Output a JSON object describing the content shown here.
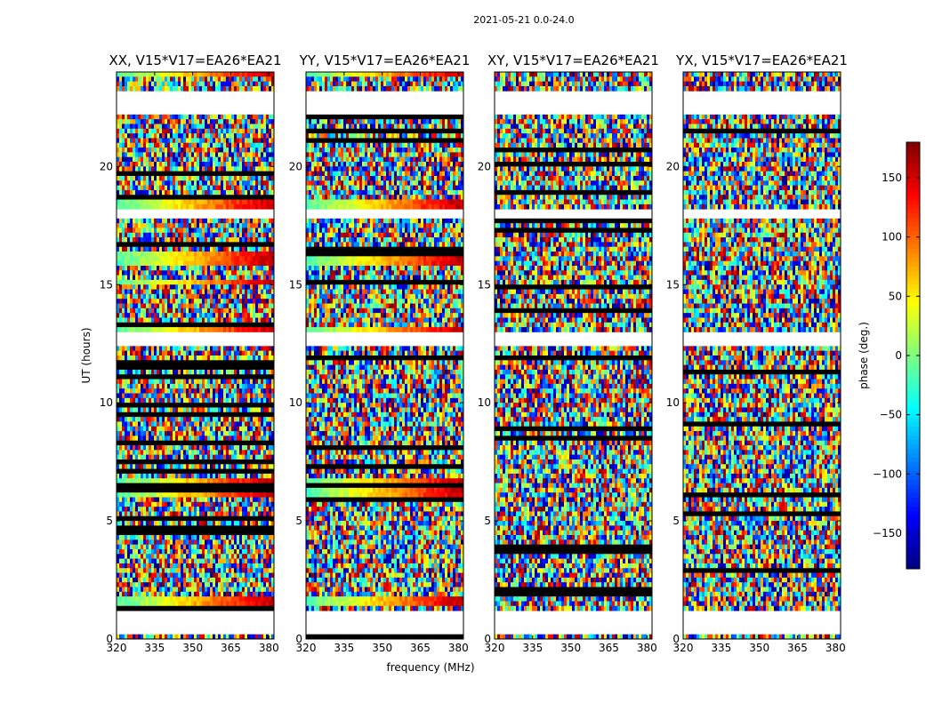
{
  "chart_data": {
    "type": "heatmap",
    "suptitle": "2021-05-21 0.0-24.0",
    "xlabel": "frequency (MHz)",
    "ylabel": "UT (hours)",
    "xlim": [
      320,
      382
    ],
    "ylim": [
      0,
      24
    ],
    "xticks": [
      320,
      335,
      350,
      365,
      380
    ],
    "yticks": [
      0,
      5,
      10,
      15,
      20
    ],
    "colormap": "jet",
    "colorbar": {
      "label": "phase (deg.)",
      "range": [
        -180,
        180
      ],
      "ticks": [
        150,
        100,
        50,
        0,
        -50,
        -100,
        -150
      ],
      "tick_labels": [
        "150",
        "100",
        "50",
        "0",
        "−50",
        "−100",
        "−150"
      ]
    },
    "panels": [
      {
        "title": "XX, V15*V17=EA26*EA21",
        "polarization": "XX"
      },
      {
        "title": "YY, V15*V17=EA26*EA21",
        "polarization": "YY"
      },
      {
        "title": "XY, V15*V17=EA26*EA21",
        "polarization": "XY"
      },
      {
        "title": "YX, V15*V17=EA26*EA21",
        "polarization": "YX"
      }
    ],
    "data_gaps_hours": [
      [
        0.2,
        1.3
      ],
      [
        12.5,
        13.0
      ],
      [
        17.8,
        18.3
      ],
      [
        22.2,
        23.3
      ]
    ],
    "coherent_bands_hours": [
      [
        1.5,
        1.8
      ],
      [
        6.1,
        6.8
      ],
      [
        13.0,
        13.2
      ],
      [
        15.0,
        15.2
      ],
      [
        15.8,
        16.4
      ],
      [
        18.3,
        18.6
      ],
      [
        23.8,
        24.0
      ]
    ]
  }
}
